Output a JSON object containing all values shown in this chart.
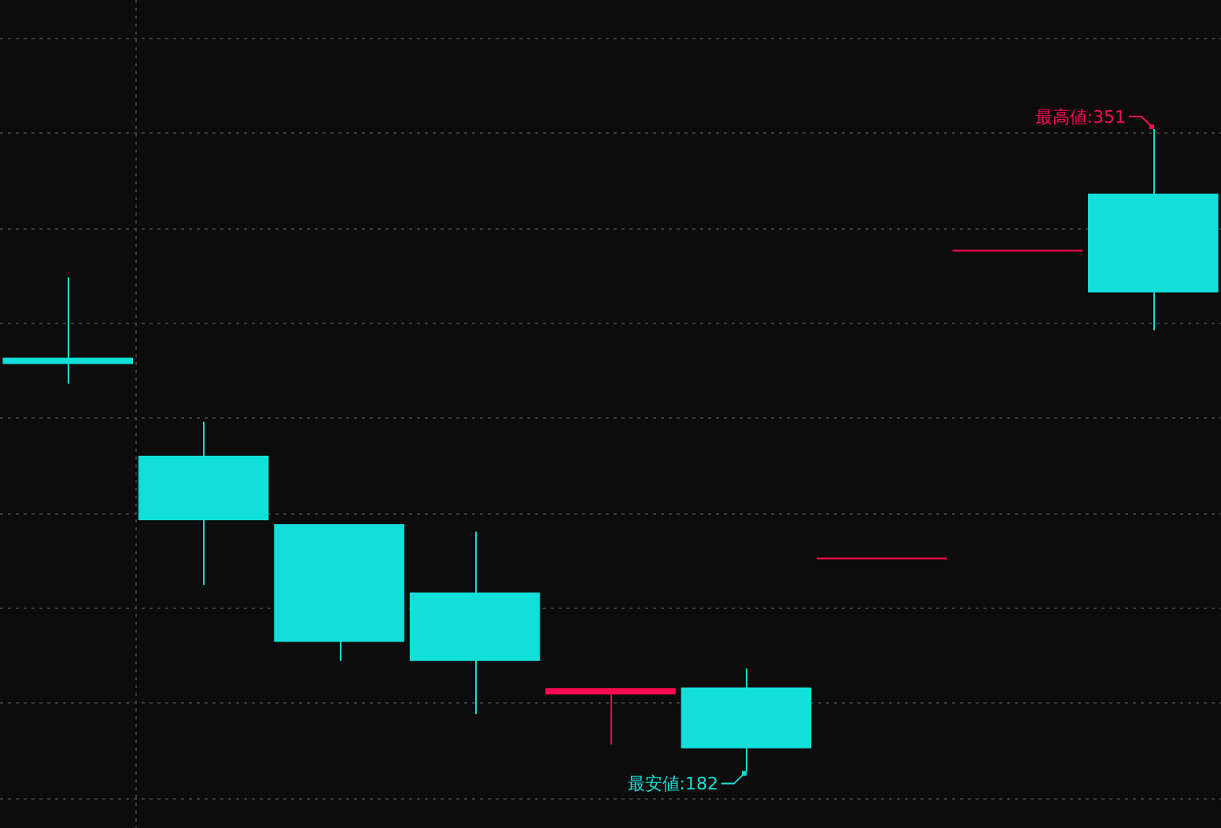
{
  "chart_data": {
    "type": "candlestick",
    "categories": [
      null,
      null,
      null,
      null,
      null,
      null,
      null,
      null,
      null
    ],
    "ohlc": [
      [
        290,
        312,
        284,
        290
      ],
      [
        265,
        274,
        231,
        248
      ],
      [
        247,
        247,
        211,
        216
      ],
      [
        229,
        245,
        197,
        211
      ],
      [
        203,
        203,
        189,
        203
      ],
      [
        204,
        209,
        182,
        188
      ],
      [
        238,
        238,
        238,
        238
      ],
      [
        319,
        319,
        319,
        319
      ],
      [
        334,
        351,
        298,
        308
      ]
    ],
    "colors": [
      "#13dfd9",
      "#13dfd9",
      "#13dfd9",
      "#13dfd9",
      "#ff0a54",
      "#13dfd9",
      "#ff0a54",
      "#ff0a54",
      "#13dfd9"
    ],
    "ylim": [
      167,
      385
    ],
    "yticks": [
      {
        "value": 175,
        "label": null
      },
      {
        "value": 200,
        "label": null
      },
      {
        "value": 225,
        "label": null
      },
      {
        "value": 250,
        "label": null
      },
      {
        "value": 275,
        "label": null
      },
      {
        "value": 300,
        "label": null
      },
      {
        "value": 325,
        "label": null
      },
      {
        "value": 350,
        "label": null
      },
      {
        "value": 375,
        "label": null
      }
    ],
    "grid": "y",
    "tick_labels": false,
    "annotations": [
      "最高値:351",
      "最安値:182"
    ]
  }
}
